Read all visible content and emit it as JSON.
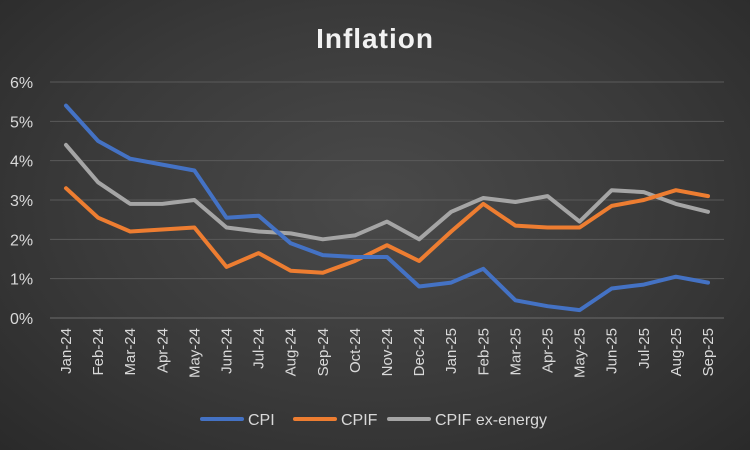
{
  "chart_data": {
    "type": "line",
    "title": "Inflation",
    "xlabel": "",
    "ylabel": "",
    "ylim": [
      0,
      6
    ],
    "yticks": [
      "0%",
      "1%",
      "2%",
      "3%",
      "4%",
      "5%",
      "6%"
    ],
    "categories": [
      "Jan-24",
      "Feb-24",
      "Mar-24",
      "Apr-24",
      "May-24",
      "Jun-24",
      "Jul-24",
      "Aug-24",
      "Sep-24",
      "Oct-24",
      "Nov-24",
      "Dec-24",
      "Jan-25",
      "Feb-25",
      "Mar-25",
      "Apr-25",
      "May-25",
      "Jun-25",
      "Jul-25",
      "Aug-25",
      "Sep-25"
    ],
    "series": [
      {
        "name": "CPI",
        "color": "#4472c4",
        "values": [
          5.4,
          4.5,
          4.05,
          3.9,
          3.75,
          2.55,
          2.6,
          1.9,
          1.6,
          1.55,
          1.55,
          0.8,
          0.9,
          1.25,
          0.45,
          0.3,
          0.2,
          0.75,
          0.85,
          1.05,
          0.9
        ]
      },
      {
        "name": "CPIF",
        "color": "#ed7d31",
        "values": [
          3.3,
          2.55,
          2.2,
          2.25,
          2.3,
          1.3,
          1.65,
          1.2,
          1.15,
          1.45,
          1.85,
          1.45,
          2.2,
          2.9,
          2.35,
          2.3,
          2.3,
          2.85,
          3.0,
          3.25,
          3.1
        ]
      },
      {
        "name": "CPIF ex-energy",
        "color": "#a5a5a5",
        "values": [
          4.4,
          3.45,
          2.9,
          2.9,
          3.0,
          2.3,
          2.2,
          2.15,
          2.0,
          2.1,
          2.45,
          2.0,
          2.7,
          3.05,
          2.95,
          3.1,
          2.45,
          3.25,
          3.2,
          2.9,
          2.7
        ]
      }
    ],
    "legend_position": "bottom",
    "grid": true
  }
}
